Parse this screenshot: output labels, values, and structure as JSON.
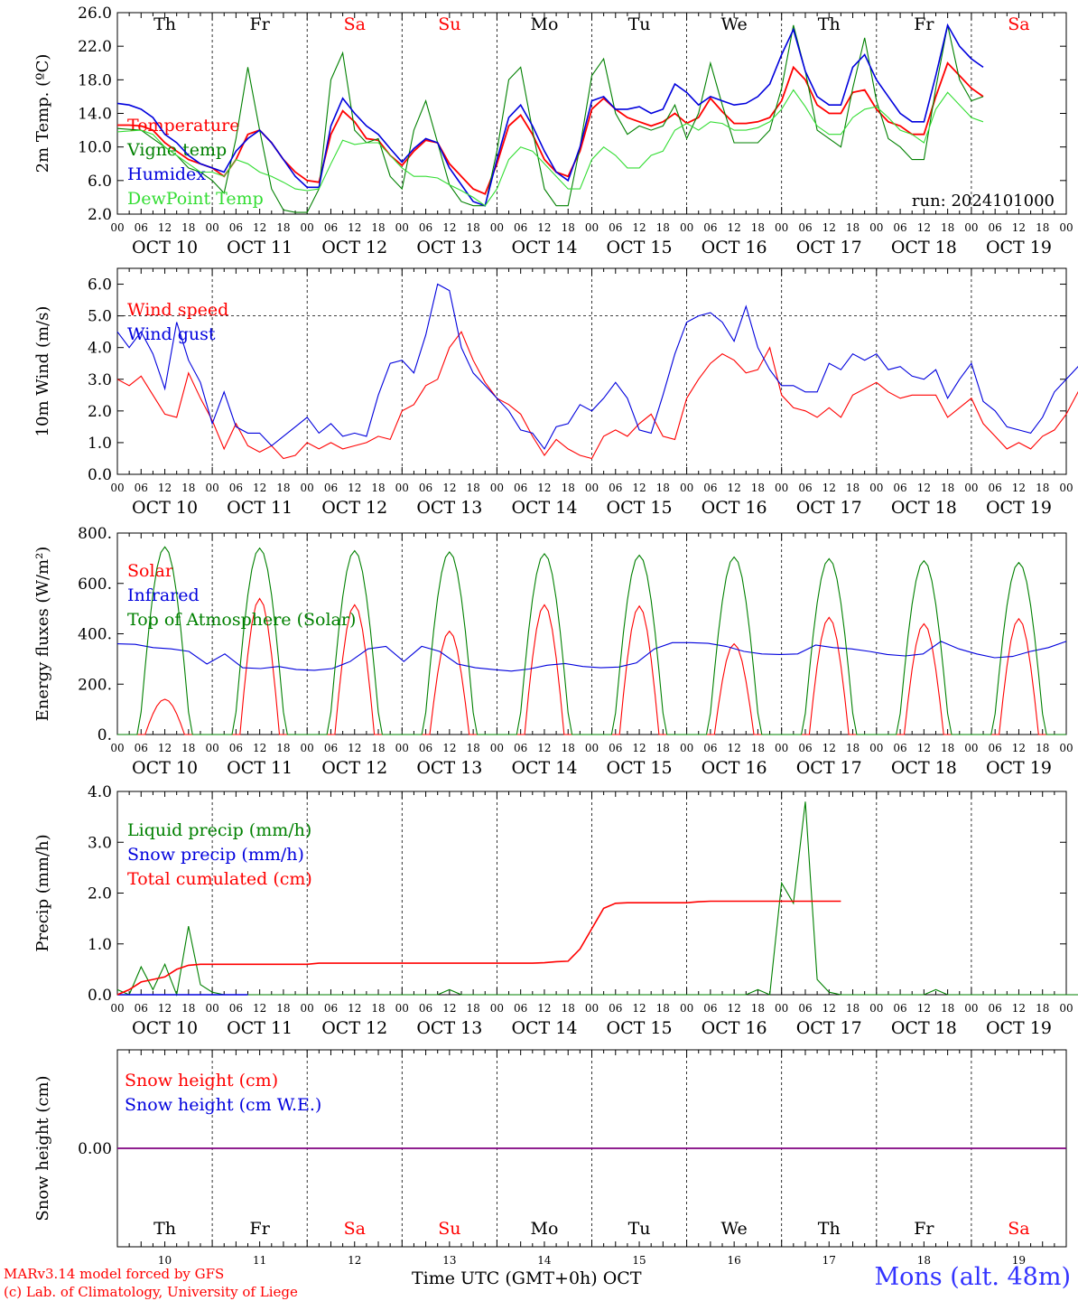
{
  "footer": {
    "model_line": "MARv3.14 model forced by GFS",
    "copyright_line": "(c) Lab. of Climatology, University of Liege",
    "x_axis_label": "Time UTC (GMT+0h) OCT",
    "station": "Mons (alt. 48m)"
  },
  "days": {
    "weekday_labels": [
      "Th",
      "Fr",
      "Sa",
      "Su",
      "Mo",
      "Tu",
      "We",
      "Th",
      "Fr",
      "Sa"
    ],
    "weekend_flags": [
      false,
      false,
      true,
      true,
      false,
      false,
      false,
      false,
      false,
      true
    ],
    "date_labels": [
      "OCT 10",
      "OCT 11",
      "OCT 12",
      "OCT 13",
      "OCT 14",
      "OCT 15",
      "OCT 16",
      "OCT 17",
      "OCT 18",
      "OCT 19"
    ],
    "day_numbers": [
      "10",
      "11",
      "12",
      "13",
      "14",
      "15",
      "16",
      "17",
      "18",
      "19"
    ],
    "hour_ticks": [
      "00",
      "06",
      "12",
      "18"
    ],
    "final_tick": "00"
  },
  "colors": {
    "red": "#ff0000",
    "green": "#008000",
    "blue": "#0000dd",
    "light_green": "#33dd33",
    "purple": "#800080",
    "weekend_text": "#ff0000",
    "weekday_text": "#000000"
  },
  "chart_data": [
    {
      "type": "line",
      "id": "temperature",
      "ylabel": "2m Temp. (ºC)",
      "ylim": [
        2.0,
        26.0
      ],
      "yticks": [
        "2.0",
        "6.0",
        "10.0",
        "14.0",
        "18.0",
        "22.0",
        "26.0"
      ],
      "grid": "vertical day lines, dashed",
      "annotation": "run: 2024101000",
      "legend_placement": "top-left",
      "time_step_hours": 3,
      "series": [
        {
          "name": "Temperature",
          "color": "red",
          "values": [
            12.6,
            12.6,
            12.5,
            12.0,
            10.5,
            9.5,
            8.5,
            8.0,
            7.5,
            6.5,
            8.5,
            11.5,
            12.0,
            10.5,
            8.5,
            7.0,
            6.0,
            5.8,
            11.5,
            14.3,
            13.0,
            11.0,
            10.8,
            9.0,
            7.8,
            9.5,
            10.8,
            10.5,
            8.0,
            6.5,
            5.0,
            4.4,
            8.0,
            12.5,
            13.8,
            11.5,
            8.5,
            7.0,
            6.5,
            9.5,
            14.5,
            15.8,
            14.5,
            13.5,
            13.0,
            12.5,
            13.0,
            14.0,
            12.8,
            13.5,
            15.8,
            14.2,
            12.8,
            12.8,
            13.0,
            13.5,
            15.5,
            19.5,
            18.0,
            15.0,
            14.0,
            14.0,
            16.5,
            16.8,
            14.5,
            13.0,
            12.5,
            11.5,
            11.5,
            16.0,
            20.0,
            18.5,
            17.0,
            16.0
          ]
        },
        {
          "name": "Vigne temp",
          "color": "green",
          "values": [
            12.2,
            12.1,
            12.0,
            11.0,
            10.0,
            9.0,
            7.5,
            7.0,
            6.0,
            4.5,
            11.0,
            19.5,
            12.0,
            5.0,
            2.5,
            2.2,
            2.2,
            5.0,
            18.0,
            21.2,
            12.0,
            10.5,
            11.0,
            6.5,
            5.0,
            12.0,
            15.5,
            10.5,
            5.5,
            3.5,
            3.0,
            3.0,
            9.5,
            18.0,
            19.5,
            12.0,
            5.0,
            3.0,
            3.0,
            10.0,
            18.5,
            20.5,
            14.0,
            11.5,
            12.5,
            12.0,
            12.5,
            15.0,
            11.0,
            14.0,
            20.0,
            15.0,
            10.5,
            10.5,
            10.5,
            12.0,
            17.0,
            24.5,
            19.0,
            12.0,
            11.0,
            10.0,
            17.0,
            23.0,
            15.5,
            11.0,
            10.0,
            8.5,
            8.5,
            17.0,
            24.5,
            18.0,
            15.5,
            16.0
          ]
        },
        {
          "name": "Humidex",
          "color": "blue",
          "values": [
            15.2,
            15.0,
            14.5,
            13.5,
            11.5,
            10.5,
            9.0,
            8.0,
            7.5,
            7.0,
            9.5,
            11.0,
            12.0,
            10.5,
            8.5,
            6.5,
            5.2,
            5.2,
            12.5,
            15.8,
            14.0,
            12.5,
            11.5,
            9.8,
            8.2,
            9.8,
            11.0,
            10.5,
            7.5,
            5.5,
            3.5,
            3.0,
            8.5,
            13.5,
            15.0,
            12.5,
            9.5,
            7.0,
            6.0,
            10.0,
            15.5,
            16.0,
            14.5,
            14.5,
            14.8,
            14.0,
            14.5,
            17.5,
            16.5,
            15.0,
            16.0,
            15.5,
            15.0,
            15.2,
            16.0,
            17.5,
            21.0,
            24.0,
            19.0,
            16.0,
            15.0,
            15.0,
            19.5,
            21.0,
            18.0,
            16.0,
            14.0,
            13.0,
            13.0,
            18.5,
            24.5,
            22.0,
            20.5,
            19.5
          ]
        },
        {
          "name": "DewPoint Temp",
          "color": "light_green",
          "values": [
            11.8,
            11.9,
            12.0,
            11.5,
            10.0,
            9.0,
            8.0,
            7.0,
            7.0,
            6.5,
            8.5,
            8.0,
            7.0,
            6.5,
            5.8,
            5.0,
            4.8,
            5.0,
            8.0,
            10.8,
            10.3,
            10.5,
            10.5,
            9.0,
            7.5,
            6.5,
            6.5,
            6.3,
            5.5,
            4.8,
            4.0,
            3.0,
            5.0,
            8.5,
            10.0,
            9.5,
            8.0,
            6.5,
            5.0,
            5.0,
            8.5,
            10.0,
            9.0,
            7.5,
            7.5,
            9.0,
            9.5,
            12.0,
            12.8,
            12.0,
            13.0,
            12.8,
            12.0,
            12.0,
            12.3,
            13.0,
            14.5,
            16.8,
            14.8,
            12.5,
            11.5,
            11.5,
            13.5,
            14.5,
            14.8,
            13.5,
            12.0,
            11.5,
            10.5,
            14.5,
            16.5,
            15.0,
            13.5,
            13.0
          ]
        }
      ]
    },
    {
      "type": "line",
      "id": "wind",
      "ylabel": "10m Wind (m/s)",
      "ylim": [
        0.0,
        6.5
      ],
      "yticks": [
        "0.0",
        "1.0",
        "2.0",
        "3.0",
        "4.0",
        "5.0",
        "6.0"
      ],
      "reference_line": 5.0,
      "legend_placement": "top-left",
      "time_step_hours": 3,
      "series": [
        {
          "name": "Wind speed",
          "color": "red",
          "values": [
            3.0,
            2.8,
            3.1,
            2.5,
            1.9,
            1.8,
            3.2,
            2.4,
            1.7,
            0.8,
            1.6,
            0.9,
            0.7,
            0.9,
            0.5,
            0.6,
            1.0,
            0.8,
            1.0,
            0.8,
            0.9,
            1.0,
            1.2,
            1.1,
            2.0,
            2.2,
            2.8,
            3.0,
            4.0,
            4.5,
            3.6,
            2.9,
            2.4,
            2.2,
            1.9,
            1.2,
            0.6,
            1.1,
            0.8,
            0.6,
            0.5,
            1.2,
            1.4,
            1.2,
            1.6,
            1.9,
            1.2,
            1.1,
            2.4,
            3.0,
            3.5,
            3.8,
            3.6,
            3.2,
            3.3,
            4.0,
            2.5,
            2.1,
            2.0,
            1.8,
            2.1,
            1.8,
            2.5,
            2.7,
            2.9,
            2.6,
            2.4,
            2.5,
            2.5,
            2.5,
            1.8,
            2.1,
            2.4,
            1.6,
            1.2,
            0.8,
            1.0,
            0.8,
            1.2,
            1.4,
            1.9,
            2.6,
            1.8,
            2.9,
            2.8
          ]
        },
        {
          "name": "Wind gust",
          "color": "blue",
          "values": [
            4.5,
            4.0,
            4.5,
            3.8,
            2.7,
            4.8,
            3.6,
            2.9,
            1.6,
            2.6,
            1.5,
            1.3,
            1.3,
            0.9,
            1.2,
            1.5,
            1.8,
            1.3,
            1.6,
            1.2,
            1.3,
            1.2,
            2.5,
            3.5,
            3.6,
            3.2,
            4.4,
            6.0,
            5.8,
            4.0,
            3.2,
            2.8,
            2.4,
            2.0,
            1.4,
            1.3,
            0.8,
            1.5,
            1.6,
            2.2,
            2.0,
            2.4,
            2.9,
            2.4,
            1.4,
            1.3,
            2.5,
            3.8,
            4.8,
            5.0,
            5.1,
            4.8,
            4.2,
            5.3,
            4.0,
            3.3,
            2.8,
            2.8,
            2.6,
            2.6,
            3.5,
            3.3,
            3.8,
            3.6,
            3.8,
            3.3,
            3.4,
            3.1,
            3.0,
            3.3,
            2.4,
            3.0,
            3.5,
            2.3,
            2.0,
            1.5,
            1.4,
            1.3,
            1.8,
            2.6,
            3.0,
            3.4,
            3.0,
            3.9,
            3.9
          ]
        }
      ]
    },
    {
      "type": "line",
      "id": "energy",
      "ylabel": "Energy fluxes (W/m²)",
      "ylim": [
        0,
        800
      ],
      "yticks": [
        "0.",
        "200.",
        "400.",
        "600.",
        "800."
      ],
      "legend_placement": "top-left",
      "time_step_hours": 1,
      "series": [
        {
          "name": "Solar",
          "color": "red",
          "daily_peaks": [
            140,
            540,
            515,
            410,
            515,
            510,
            360,
            465,
            440,
            460
          ],
          "shape": "diurnal bump, 0 at night"
        },
        {
          "name": "Infrared",
          "color": "blue",
          "values": [
            360,
            358,
            345,
            340,
            330,
            280,
            320,
            265,
            262,
            270,
            258,
            255,
            262,
            290,
            340,
            350,
            290,
            350,
            330,
            280,
            265,
            258,
            252,
            260,
            275,
            282,
            270,
            265,
            268,
            285,
            340,
            365,
            365,
            362,
            350,
            330,
            320,
            318,
            320,
            355,
            345,
            340,
            330,
            318,
            312,
            320,
            370,
            340,
            320,
            305,
            310,
            330,
            345,
            370
          ]
        },
        {
          "name": "Top of Atmosphere (Solar)",
          "color": "green",
          "daily_peaks": [
            745,
            740,
            730,
            725,
            718,
            712,
            705,
            698,
            690,
            683
          ],
          "shape": "diurnal bump, 0 at night"
        }
      ]
    },
    {
      "type": "line",
      "id": "precip",
      "ylabel": "Precip (mm/h)",
      "ylim": [
        0.0,
        4.0
      ],
      "yticks": [
        "0.0",
        "1.0",
        "2.0",
        "3.0",
        "4.0"
      ],
      "legend_placement": "top-left",
      "time_step_hours": 3,
      "series": [
        {
          "name": "Liquid precip (mm/h)",
          "color": "green",
          "values": [
            0.1,
            0.0,
            0.55,
            0.1,
            0.6,
            0.0,
            1.35,
            0.2,
            0.05,
            0,
            0,
            0,
            0,
            0,
            0,
            0,
            0,
            0,
            0,
            0,
            0,
            0,
            0,
            0,
            0,
            0,
            0,
            0,
            0.1,
            0.0,
            0,
            0,
            0,
            0,
            0,
            0,
            0,
            0,
            0,
            0,
            0,
            0,
            0,
            0,
            0,
            0,
            0,
            0,
            0,
            0,
            0,
            0,
            0,
            0,
            0.1,
            0.0,
            2.2,
            1.8,
            3.8,
            0.3,
            0.05,
            0,
            0,
            0,
            0,
            0,
            0,
            0,
            0,
            0.1,
            0.0,
            0,
            0,
            0,
            0,
            0,
            0,
            0,
            0,
            0,
            0,
            0,
            0,
            0,
            0
          ]
        },
        {
          "name": "Snow precip (mm/h)",
          "color": "blue",
          "values": [
            0,
            0,
            0,
            0,
            0,
            0,
            0,
            0,
            0,
            0,
            0,
            0
          ]
        },
        {
          "name": "Total cumulated (cm)",
          "color": "red",
          "values": [
            0.0,
            0.1,
            0.25,
            0.3,
            0.35,
            0.5,
            0.58,
            0.6,
            0.6,
            0.6,
            0.6,
            0.6,
            0.6,
            0.6,
            0.6,
            0.6,
            0.6,
            0.62,
            0.62,
            0.62,
            0.62,
            0.62,
            0.62,
            0.62,
            0.62,
            0.62,
            0.62,
            0.62,
            0.62,
            0.62,
            0.62,
            0.62,
            0.62,
            0.62,
            0.62,
            0.62,
            0.63,
            0.65,
            0.66,
            0.9,
            1.3,
            1.7,
            1.8,
            1.81,
            1.81,
            1.81,
            1.81,
            1.81,
            1.81,
            1.83,
            1.84,
            1.84,
            1.84,
            1.84,
            1.84,
            1.84,
            1.84,
            1.84,
            1.84,
            1.84,
            1.84,
            1.84
          ]
        }
      ]
    },
    {
      "type": "line",
      "id": "snow",
      "ylabel": "Snow height (cm)",
      "yticks": [
        "0.00"
      ],
      "legend_placement": "top-left",
      "series": [
        {
          "name": "Snow height (cm)",
          "color": "red",
          "values": [
            0,
            0
          ]
        },
        {
          "name": "Snow height (cm W.E.)",
          "color": "blue",
          "values": [
            0,
            0
          ]
        }
      ]
    }
  ]
}
